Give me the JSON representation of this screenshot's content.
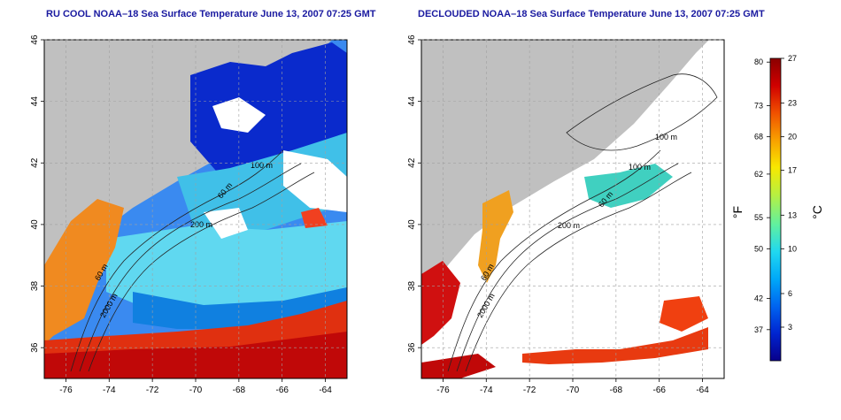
{
  "left_panel": {
    "title": "RU COOL NOAA–18 Sea Surface Temperature June 13, 2007 07:25 GMT",
    "contour_labels": [
      "100 m",
      "200 m",
      "60 m",
      "2000 m",
      "60 m"
    ]
  },
  "right_panel": {
    "title": "DECLOUDED NOAA–18 Sea Surface Temperature June 13, 2007 07:25 GMT",
    "contour_labels": [
      "100 m",
      "100 m",
      "200 m",
      "60 m",
      "2000 m",
      "60 m"
    ]
  },
  "axes": {
    "x_ticks": [
      "-76",
      "-74",
      "-72",
      "-70",
      "-68",
      "-66",
      "-64"
    ],
    "y_ticks": [
      "36",
      "38",
      "40",
      "42",
      "44",
      "46"
    ],
    "xlim": [
      -77,
      -63
    ],
    "ylim": [
      35,
      46
    ]
  },
  "colorbar": {
    "fahrenheit_label": "°F",
    "celsius_label": "°C",
    "fahrenheit_ticks": [
      "80",
      "73",
      "68",
      "62",
      "55",
      "50",
      "42",
      "37"
    ],
    "celsius_ticks": [
      "27",
      "23",
      "20",
      "17",
      "13",
      "10",
      "6",
      "3"
    ],
    "range_c": [
      0,
      27
    ],
    "colors": [
      "#08008a",
      "#0024d0",
      "#0064f0",
      "#00a8f8",
      "#20d8f0",
      "#60f0a0",
      "#b8f040",
      "#f8e800",
      "#f8a000",
      "#f05000",
      "#d00000",
      "#8a0000"
    ]
  },
  "colors": {
    "land": "#c0c0c0",
    "cloud": "#ffffff",
    "title": "#1a1aa0",
    "grid": "#a0a0a0"
  }
}
